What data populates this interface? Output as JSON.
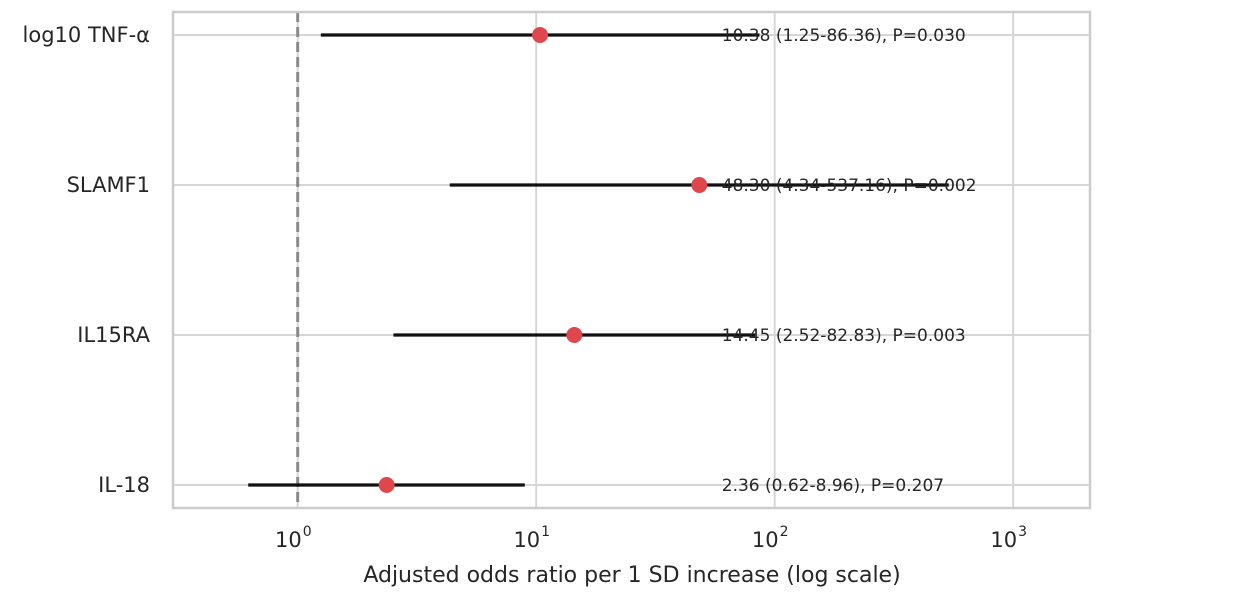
{
  "chart_data": {
    "type": "scatter",
    "subtype": "forest-plot",
    "title": "",
    "xlabel": "Adjusted odds ratio per 1 SD increase (log scale)",
    "ylabel": "",
    "x_scale": "log",
    "xlim": [
      0.3,
      2100
    ],
    "x_ticks": [
      {
        "base": "10",
        "exp": "0"
      },
      {
        "base": "10",
        "exp": "1"
      },
      {
        "base": "10",
        "exp": "2"
      },
      {
        "base": "10",
        "exp": "3"
      }
    ],
    "reference_line": 1,
    "grid": true,
    "categories": [
      "log10 TNF-α",
      "SLAMF1",
      "IL15RA",
      "IL-18"
    ],
    "odds_ratio": [
      10.38,
      48.3,
      14.45,
      2.36
    ],
    "ci_low": [
      1.25,
      4.34,
      2.52,
      0.62
    ],
    "ci_high": [
      86.36,
      537.16,
      82.83,
      8.96
    ],
    "p_values": [
      0.03,
      0.002,
      0.003,
      0.207
    ],
    "annotations": [
      "10.38 (1.25-86.36), P=0.030",
      "48.30 (4.34-537.16), P=0.002",
      "14.45 (2.52-82.83), P=0.003",
      "2.36 (0.62-8.96), P=0.207"
    ],
    "colors": {
      "point": "#e0474c",
      "ci_line": "#111111",
      "reference_line": "#8a8a8a",
      "grid": "#d6d6d6",
      "frame": "#cccccc"
    }
  }
}
